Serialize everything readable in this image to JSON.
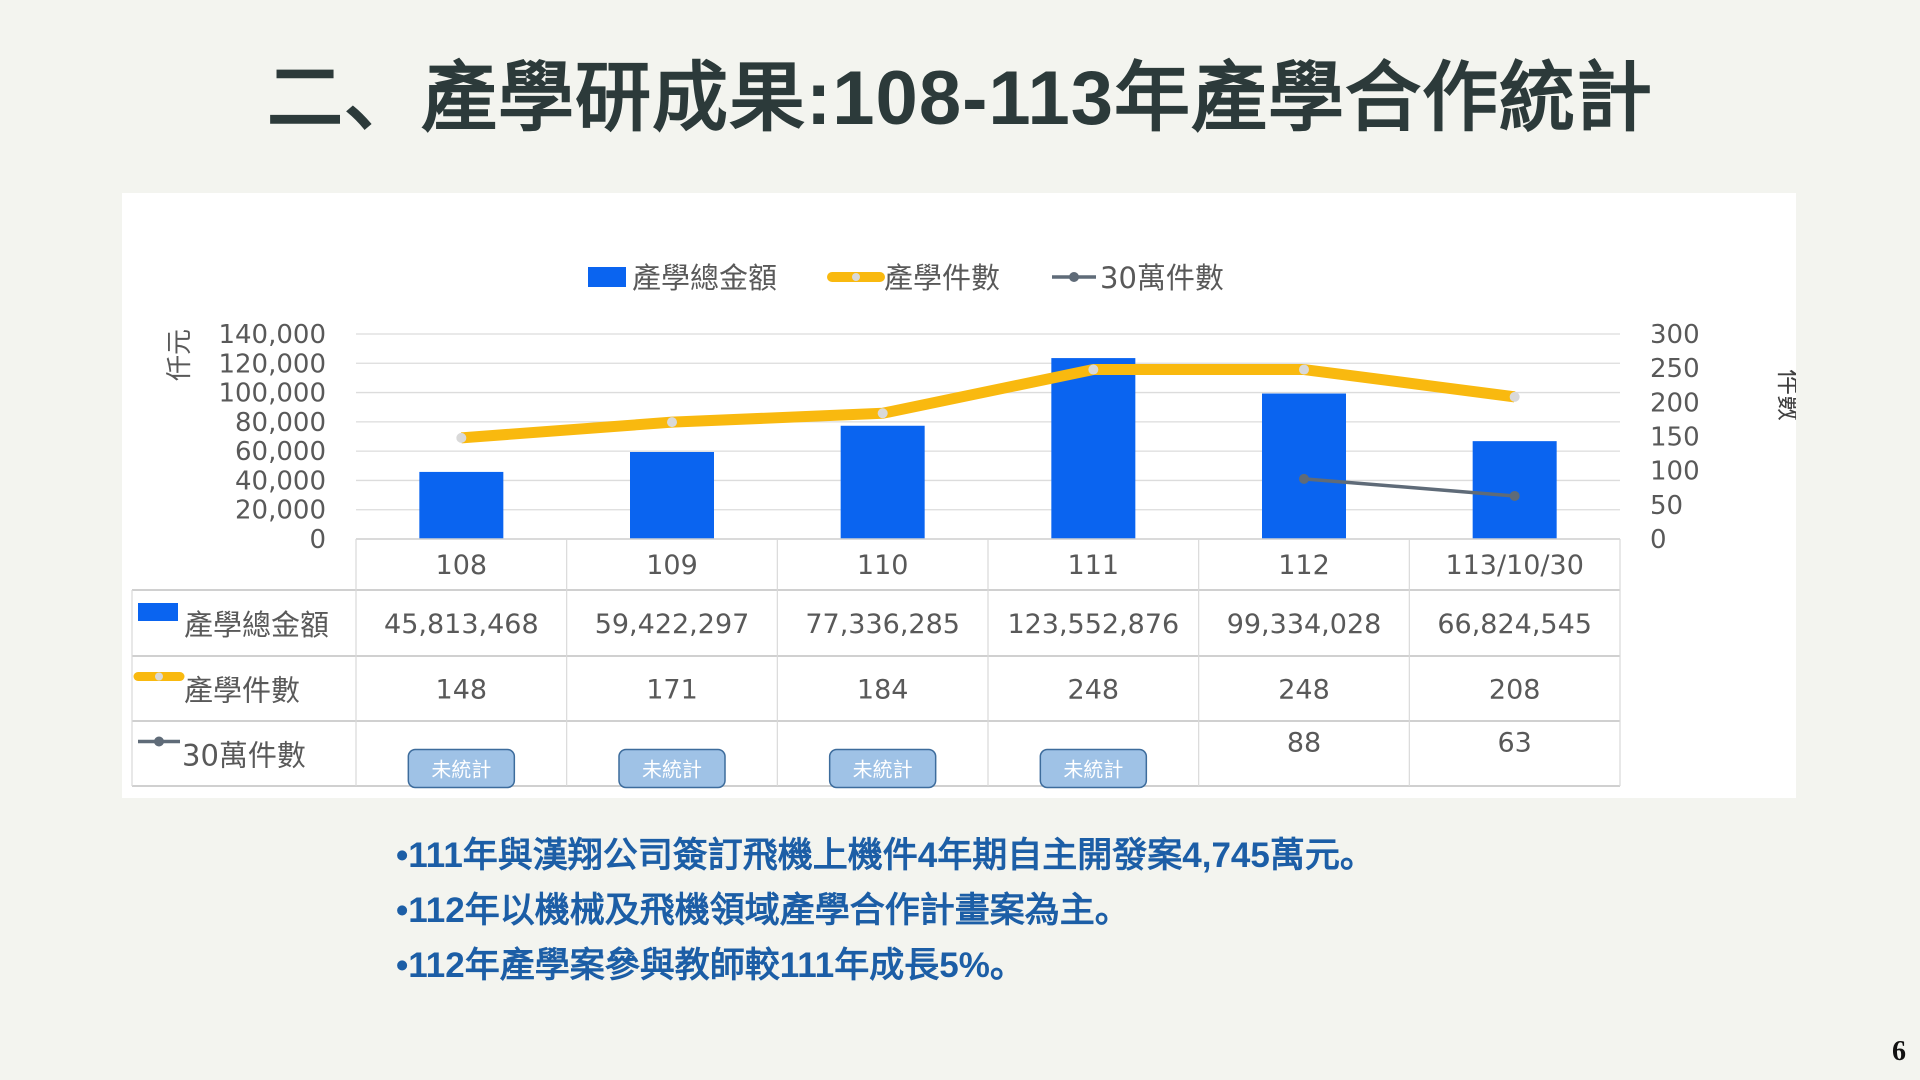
{
  "title": "二、產學研成果:108-113年產學合作統計",
  "chart_data": {
    "type": "bar+line",
    "categories": [
      "108",
      "109",
      "110",
      "111",
      "112",
      "113/10/30"
    ],
    "legend_position": "top",
    "grid": true,
    "y_left": {
      "label": "仟元",
      "range": [
        0,
        140000
      ],
      "ticks": [
        "0",
        "20,000",
        "40,000",
        "60,000",
        "80,000",
        "100,000",
        "120,000",
        "140,000"
      ]
    },
    "y_right": {
      "label": "件數",
      "range": [
        0,
        300
      ],
      "ticks": [
        "0",
        "50",
        "100",
        "150",
        "200",
        "250",
        "300"
      ]
    },
    "series": [
      {
        "name": "產學總金額",
        "type": "bar",
        "axis": "left",
        "color": "#0a64f0",
        "values": [
          45813.468,
          59422.297,
          77336.285,
          123552.876,
          99334.028,
          66824.545
        ],
        "table_values": [
          "45,813,468",
          "59,422,297",
          "77,336,285",
          "123,552,876",
          "99,334,028",
          "66,824,545"
        ]
      },
      {
        "name": "產學件數",
        "type": "line",
        "axis": "right",
        "color": "#f9b90f",
        "values": [
          148,
          171,
          184,
          248,
          248,
          208
        ],
        "table_values": [
          "148",
          "171",
          "184",
          "248",
          "248",
          "208"
        ]
      },
      {
        "name": "30萬件數",
        "type": "line",
        "axis": "right",
        "color": "#5f6b78",
        "values": [
          null,
          null,
          null,
          null,
          88,
          63
        ],
        "table_values": [
          "未統計",
          "未統計",
          "未統計",
          "未統計",
          "88",
          "63"
        ]
      }
    ]
  },
  "bullets": [
    "•111年與漢翔公司簽訂飛機上機件4年期自主開發案4,745萬元。",
    "•112年以機械及飛機領域產學合作計畫案為主。",
    "•112年產學案參與教師較111年成長5%。"
  ],
  "page_number": "6"
}
